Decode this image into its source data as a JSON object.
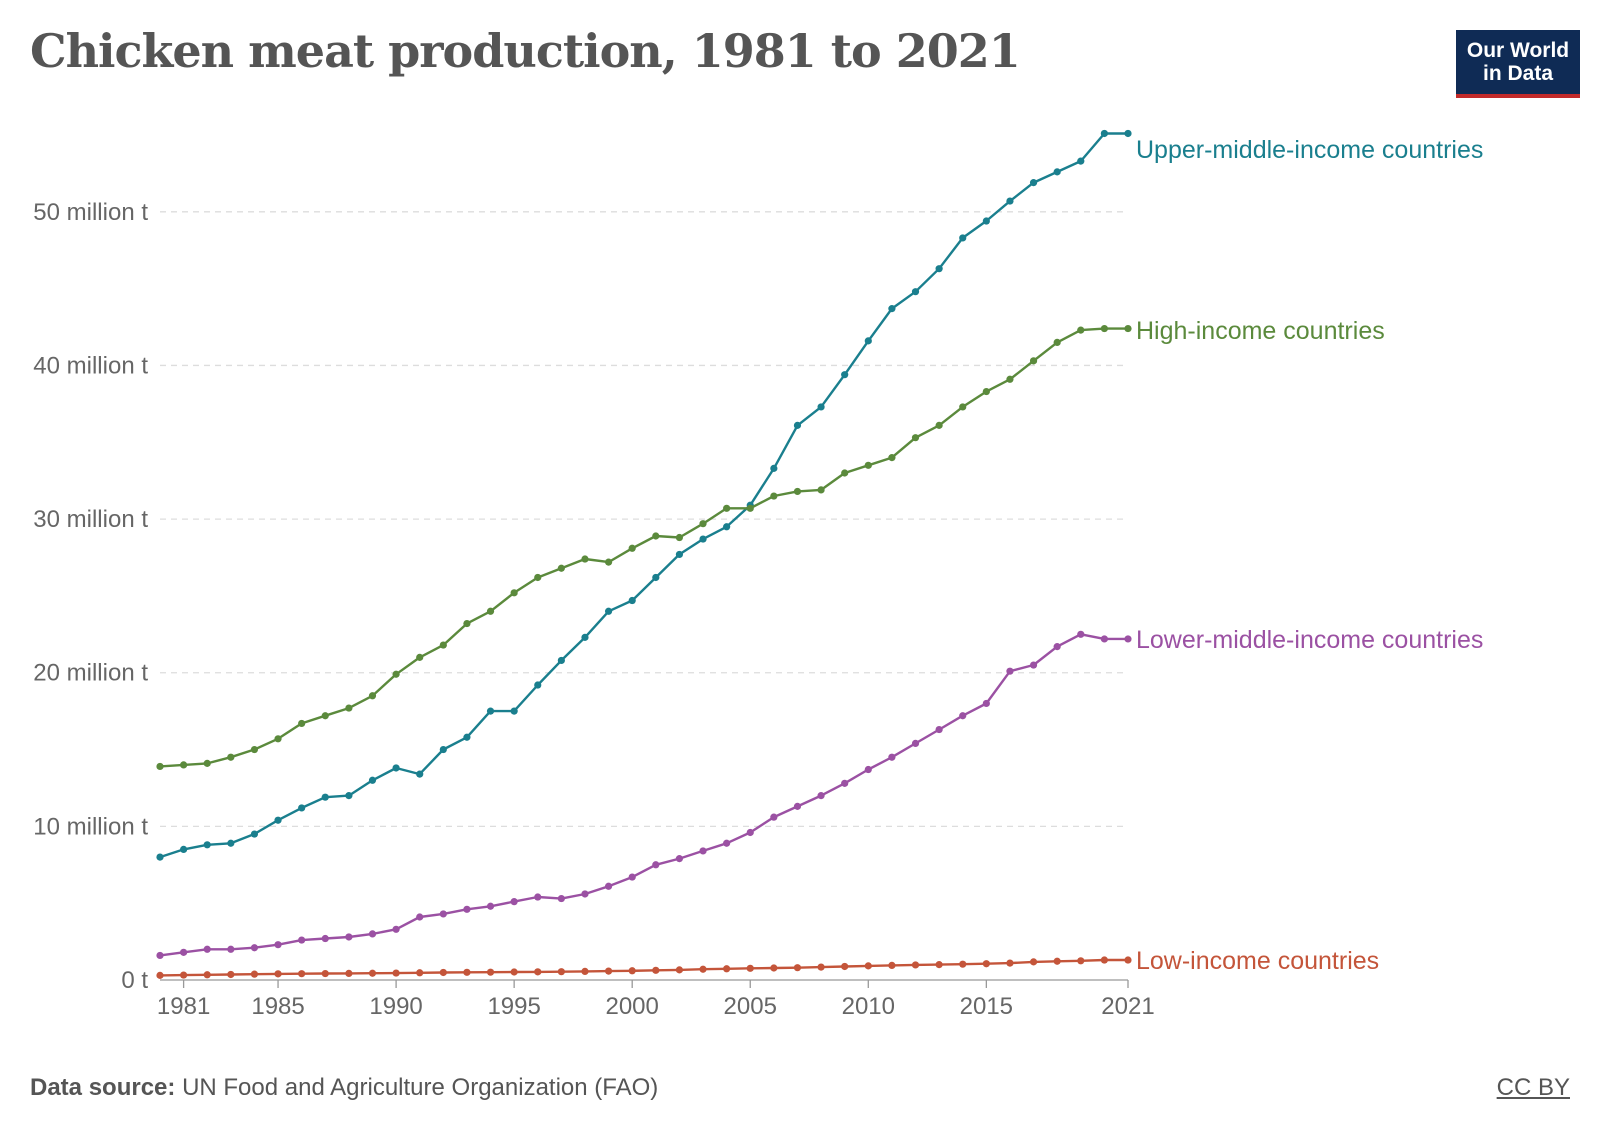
{
  "header": {
    "title": "Chicken meat production, 1981 to 2021",
    "logo_line1": "Our World",
    "logo_line2": "in Data"
  },
  "footer": {
    "source_label": "Data source:",
    "source_text": "UN Food and Agriculture Organization (FAO)",
    "license": "CC BY"
  },
  "colors": {
    "upper_middle": "#1a7f8e",
    "high": "#5b8a3c",
    "lower_middle": "#9b51a3",
    "low": "#c4553a",
    "grid": "#dddddd",
    "axis_text": "#666666"
  },
  "chart_data": {
    "type": "line",
    "title": "Chicken meat production, 1981 to 2021",
    "xlabel": "",
    "ylabel": "",
    "xlim": [
      1980,
      2021
    ],
    "ylim": [
      0,
      55000000
    ],
    "grid": "horizontal dashed",
    "legend": "labels at line ends (right)",
    "x_ticks": [
      {
        "value": 1981,
        "label": "1981"
      },
      {
        "value": 1985,
        "label": "1985"
      },
      {
        "value": 1990,
        "label": "1990"
      },
      {
        "value": 1995,
        "label": "1995"
      },
      {
        "value": 2000,
        "label": "2000"
      },
      {
        "value": 2005,
        "label": "2005"
      },
      {
        "value": 2010,
        "label": "2010"
      },
      {
        "value": 2015,
        "label": "2015"
      },
      {
        "value": 2021,
        "label": "2021"
      }
    ],
    "y_ticks": [
      {
        "value": 0,
        "label": "0 t"
      },
      {
        "value": 10000000,
        "label": "10 million t"
      },
      {
        "value": 20000000,
        "label": "20 million t"
      },
      {
        "value": 30000000,
        "label": "30 million t"
      },
      {
        "value": 40000000,
        "label": "40 million t"
      },
      {
        "value": 50000000,
        "label": "50 million t"
      }
    ],
    "x": [
      1980,
      1981,
      1982,
      1983,
      1984,
      1985,
      1986,
      1987,
      1988,
      1989,
      1990,
      1991,
      1992,
      1993,
      1994,
      1995,
      1996,
      1997,
      1998,
      1999,
      2000,
      2001,
      2002,
      2003,
      2004,
      2005,
      2006,
      2007,
      2008,
      2009,
      2010,
      2011,
      2012,
      2013,
      2014,
      2015,
      2016,
      2017,
      2018,
      2019,
      2020,
      2021
    ],
    "series": [
      {
        "name": "Upper-middle-income countries",
        "color": "#1a7f8e",
        "values": [
          8000000,
          8500000,
          8800000,
          8900000,
          9500000,
          10400000,
          11200000,
          11900000,
          12000000,
          13000000,
          13800000,
          13400000,
          15000000,
          15800000,
          17500000,
          17500000,
          19200000,
          20800000,
          22300000,
          24000000,
          24700000,
          26200000,
          27700000,
          28700000,
          29500000,
          30900000,
          33300000,
          36100000,
          37300000,
          39400000,
          41600000,
          43700000,
          44800000,
          46300000,
          48300000,
          49400000,
          50700000,
          51900000,
          52600000,
          53300000,
          55100000,
          55100000
        ]
      },
      {
        "name": "High-income countries",
        "color": "#5b8a3c",
        "values": [
          13900000,
          14000000,
          14100000,
          14500000,
          15000000,
          15700000,
          16700000,
          17200000,
          17700000,
          18500000,
          19900000,
          21000000,
          21800000,
          23200000,
          24000000,
          25200000,
          26200000,
          26800000,
          27400000,
          27200000,
          28100000,
          28900000,
          28800000,
          29700000,
          30700000,
          30700000,
          31500000,
          31800000,
          31900000,
          33000000,
          33500000,
          34000000,
          35300000,
          36100000,
          37300000,
          38300000,
          39100000,
          40300000,
          41500000,
          42300000,
          42400000,
          42400000
        ]
      },
      {
        "name": "Lower-middle-income countries",
        "color": "#9b51a3",
        "values": [
          1600000,
          1800000,
          2000000,
          2000000,
          2100000,
          2300000,
          2600000,
          2700000,
          2800000,
          3000000,
          3300000,
          4100000,
          4300000,
          4600000,
          4800000,
          5100000,
          5400000,
          5300000,
          5600000,
          6100000,
          6700000,
          7500000,
          7900000,
          8400000,
          8900000,
          9600000,
          10600000,
          11300000,
          12000000,
          12800000,
          13700000,
          14500000,
          15400000,
          16300000,
          17200000,
          18000000,
          20100000,
          20500000,
          21700000,
          22500000,
          22200000,
          22200000
        ]
      },
      {
        "name": "Low-income countries",
        "color": "#c4553a",
        "values": [
          300000,
          320000,
          340000,
          360000,
          380000,
          400000,
          410000,
          420000,
          430000,
          440000,
          450000,
          470000,
          490000,
          500000,
          510000,
          520000,
          530000,
          540000,
          560000,
          580000,
          600000,
          630000,
          660000,
          700000,
          730000,
          760000,
          780000,
          800000,
          840000,
          880000,
          920000,
          950000,
          980000,
          1000000,
          1030000,
          1060000,
          1100000,
          1180000,
          1220000,
          1250000,
          1300000,
          1300000
        ]
      }
    ]
  }
}
